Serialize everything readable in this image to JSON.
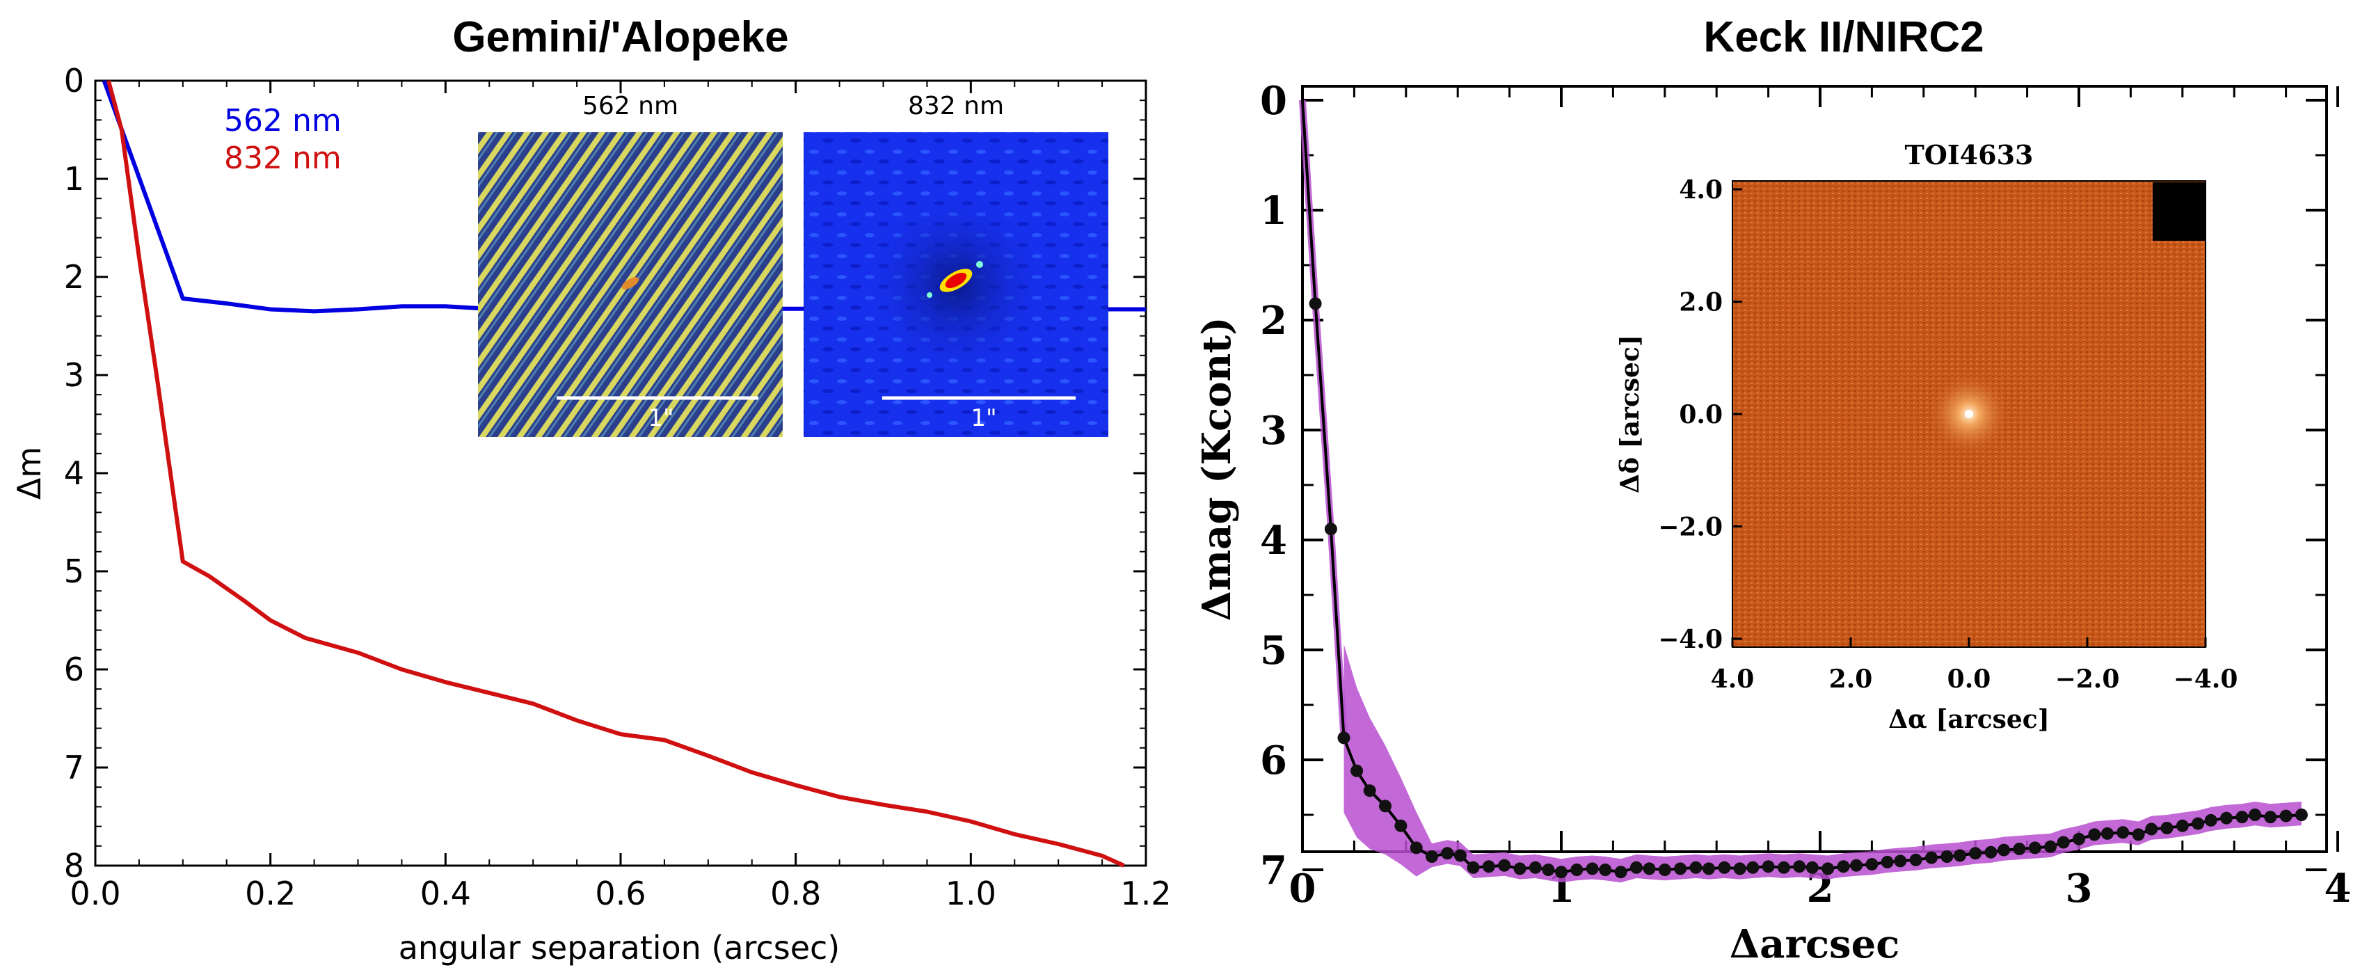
{
  "chart_data": [
    {
      "type": "line",
      "title": "Gemini/'Alopeke",
      "xlabel": "angular separation (arcsec)",
      "ylabel": "Δm",
      "xlim": [
        0.0,
        1.2
      ],
      "ylim": [
        0,
        8
      ],
      "y_inverted": true,
      "xticks": [
        "0.0",
        "0.2",
        "0.4",
        "0.6",
        "0.8",
        "1.0",
        "1.2"
      ],
      "yticks": [
        "0",
        "1",
        "2",
        "3",
        "4",
        "5",
        "6",
        "7",
        "8"
      ],
      "legend": [
        "562 nm",
        "832 nm"
      ],
      "series": [
        {
          "name": "562 nm",
          "color": "#0000e0",
          "points": [
            [
              0.01,
              0.0
            ],
            [
              0.1,
              2.22
            ],
            [
              0.15,
              2.27
            ],
            [
              0.2,
              2.33
            ],
            [
              0.25,
              2.35
            ],
            [
              0.3,
              2.33
            ],
            [
              0.35,
              2.3
            ],
            [
              0.4,
              2.3
            ],
            [
              0.44,
              2.32
            ],
            [
              1.2,
              2.33
            ]
          ]
        },
        {
          "name": "832 nm",
          "color": "#d01010",
          "points": [
            [
              0.015,
              0.0
            ],
            [
              0.03,
              0.5
            ],
            [
              0.05,
              1.8
            ],
            [
              0.07,
              3.0
            ],
            [
              0.1,
              4.9
            ],
            [
              0.13,
              5.05
            ],
            [
              0.17,
              5.3
            ],
            [
              0.2,
              5.5
            ],
            [
              0.24,
              5.68
            ],
            [
              0.3,
              5.83
            ],
            [
              0.35,
              6.0
            ],
            [
              0.4,
              6.13
            ],
            [
              0.45,
              6.24
            ],
            [
              0.5,
              6.35
            ],
            [
              0.55,
              6.52
            ],
            [
              0.6,
              6.66
            ],
            [
              0.65,
              6.72
            ],
            [
              0.7,
              6.88
            ],
            [
              0.75,
              7.05
            ],
            [
              0.8,
              7.18
            ],
            [
              0.85,
              7.3
            ],
            [
              0.9,
              7.38
            ],
            [
              0.95,
              7.45
            ],
            [
              1.0,
              7.55
            ],
            [
              1.05,
              7.68
            ],
            [
              1.1,
              7.78
            ],
            [
              1.15,
              7.9
            ],
            [
              1.175,
              8.0
            ]
          ]
        }
      ],
      "insets": [
        {
          "label": "562 nm",
          "scale_label": "1\""
        },
        {
          "label": "832 nm",
          "scale_label": "1\""
        }
      ]
    },
    {
      "type": "line",
      "title": "Keck II/NIRC2",
      "xlabel": "Δarcsec",
      "ylabel": "Δmag (Kcont)",
      "xlim": [
        0,
        4
      ],
      "ylim": [
        0,
        7.2
      ],
      "y_inverted": true,
      "xticks": [
        "0",
        "1",
        "2",
        "3",
        "4"
      ],
      "yticks": [
        "0",
        "1",
        "2",
        "3",
        "4",
        "5",
        "6",
        "7"
      ],
      "band_color": "#b84fd0",
      "series": [
        {
          "color": "#000000",
          "points": [
            [
              0.0,
              0.0
            ],
            [
              0.05,
              1.85
            ],
            [
              0.11,
              3.9
            ],
            [
              0.16,
              5.8
            ],
            [
              0.21,
              6.1
            ],
            [
              0.26,
              6.28
            ],
            [
              0.32,
              6.42
            ],
            [
              0.38,
              6.6
            ],
            [
              0.44,
              6.8
            ],
            [
              0.5,
              6.88
            ],
            [
              0.56,
              6.85
            ],
            [
              0.61,
              6.87
            ],
            [
              0.66,
              6.98
            ],
            [
              0.72,
              6.97
            ],
            [
              0.78,
              6.96
            ],
            [
              0.84,
              6.99
            ],
            [
              0.9,
              6.98
            ],
            [
              0.95,
              7.0
            ],
            [
              1.0,
              7.02
            ],
            [
              1.06,
              7.0
            ],
            [
              1.12,
              6.99
            ],
            [
              1.17,
              7.0
            ],
            [
              1.23,
              7.02
            ],
            [
              1.29,
              6.98
            ],
            [
              1.34,
              6.99
            ],
            [
              1.4,
              7.0
            ],
            [
              1.46,
              6.99
            ],
            [
              1.52,
              6.98
            ],
            [
              1.57,
              6.99
            ],
            [
              1.63,
              6.98
            ],
            [
              1.69,
              6.99
            ],
            [
              1.74,
              6.98
            ],
            [
              1.8,
              6.97
            ],
            [
              1.86,
              6.98
            ],
            [
              1.92,
              6.97
            ],
            [
              1.97,
              6.98
            ],
            [
              2.03,
              6.99
            ],
            [
              2.09,
              6.97
            ],
            [
              2.14,
              6.96
            ],
            [
              2.2,
              6.95
            ],
            [
              2.26,
              6.93
            ],
            [
              2.31,
              6.92
            ],
            [
              2.37,
              6.91
            ],
            [
              2.43,
              6.89
            ],
            [
              2.49,
              6.88
            ],
            [
              2.54,
              6.87
            ],
            [
              2.6,
              6.85
            ],
            [
              2.66,
              6.84
            ],
            [
              2.71,
              6.82
            ],
            [
              2.77,
              6.81
            ],
            [
              2.83,
              6.8
            ],
            [
              2.89,
              6.79
            ],
            [
              2.94,
              6.75
            ],
            [
              3.0,
              6.72
            ],
            [
              3.06,
              6.68
            ],
            [
              3.11,
              6.67
            ],
            [
              3.17,
              6.66
            ],
            [
              3.23,
              6.68
            ],
            [
              3.28,
              6.63
            ],
            [
              3.34,
              6.62
            ],
            [
              3.4,
              6.6
            ],
            [
              3.46,
              6.58
            ],
            [
              3.51,
              6.55
            ],
            [
              3.57,
              6.53
            ],
            [
              3.63,
              6.52
            ],
            [
              3.68,
              6.5
            ],
            [
              3.74,
              6.52
            ],
            [
              3.8,
              6.51
            ],
            [
              3.86,
              6.5
            ]
          ]
        }
      ],
      "inset": {
        "title": "TOI4633",
        "xlabel": "Δα [arcsec]",
        "ylabel": "Δδ [arcsec]",
        "xticks": [
          "4.0",
          "2.0",
          "0.0",
          "−2.0",
          "−4.0"
        ],
        "yticks": [
          "4.0",
          "2.0",
          "0.0",
          "−2.0",
          "−4.0"
        ]
      }
    }
  ]
}
